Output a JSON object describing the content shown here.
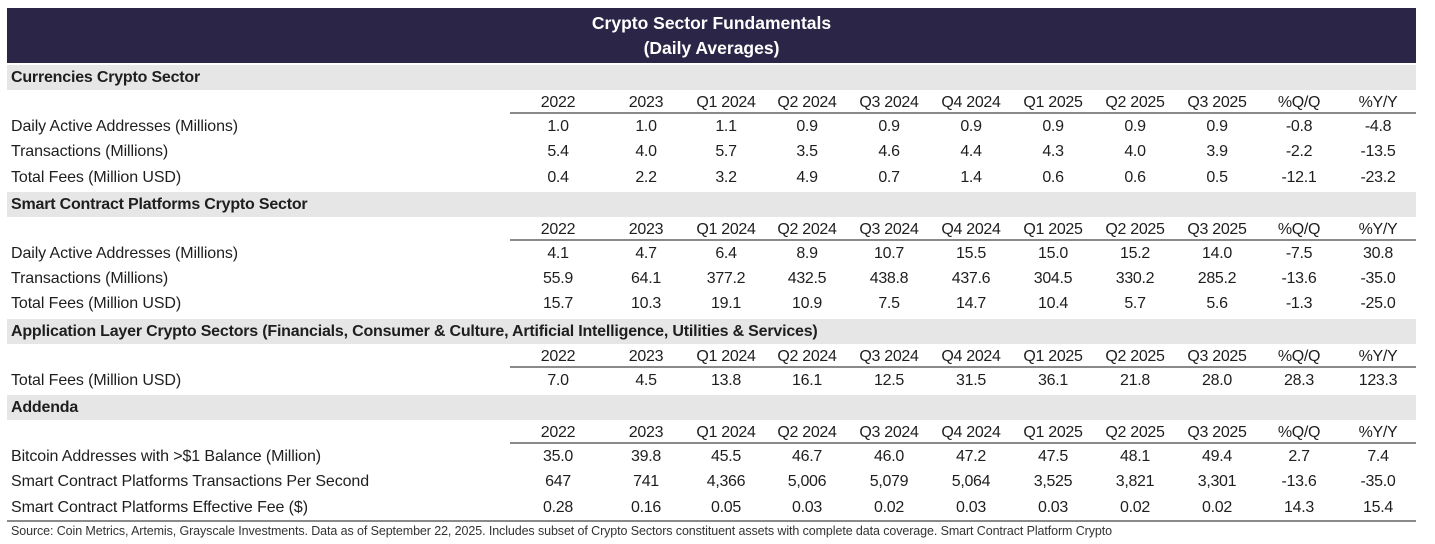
{
  "title_line1": "Crypto Sector Fundamentals",
  "title_line2": "(Daily Averages)",
  "columns": [
    "2022",
    "2023",
    "Q1 2024",
    "Q2 2024",
    "Q3 2024",
    "Q4 2024",
    "Q1 2025",
    "Q2 2025",
    "Q3 2025",
    "%Q/Q",
    "%Y/Y"
  ],
  "sections": [
    {
      "name": "Currencies Crypto Sector",
      "rows": [
        {
          "label": "Daily Active Addresses (Millions)",
          "values": [
            "1.0",
            "1.0",
            "1.1",
            "0.9",
            "0.9",
            "0.9",
            "0.9",
            "0.9",
            "0.9",
            "-0.8",
            "-4.8"
          ]
        },
        {
          "label": "Transactions (Millions)",
          "values": [
            "5.4",
            "4.0",
            "5.7",
            "3.5",
            "4.6",
            "4.4",
            "4.3",
            "4.0",
            "3.9",
            "-2.2",
            "-13.5"
          ]
        },
        {
          "label": "Total Fees (Million USD)",
          "values": [
            "0.4",
            "2.2",
            "3.2",
            "4.9",
            "0.7",
            "1.4",
            "0.6",
            "0.6",
            "0.5",
            "-12.1",
            "-23.2"
          ]
        }
      ]
    },
    {
      "name": "Smart Contract Platforms Crypto Sector",
      "rows": [
        {
          "label": "Daily Active Addresses (Millions)",
          "values": [
            "4.1",
            "4.7",
            "6.4",
            "8.9",
            "10.7",
            "15.5",
            "15.0",
            "15.2",
            "14.0",
            "-7.5",
            "30.8"
          ]
        },
        {
          "label": "Transactions (Millions)",
          "values": [
            "55.9",
            "64.1",
            "377.2",
            "432.5",
            "438.8",
            "437.6",
            "304.5",
            "330.2",
            "285.2",
            "-13.6",
            "-35.0"
          ]
        },
        {
          "label": "Total Fees (Million USD)",
          "values": [
            "15.7",
            "10.3",
            "19.1",
            "10.9",
            "7.5",
            "14.7",
            "10.4",
            "5.7",
            "5.6",
            "-1.3",
            "-25.0"
          ]
        }
      ]
    },
    {
      "name": "Application Layer Crypto Sectors (Financials, Consumer & Culture, Artificial Intelligence, Utilities & Services)",
      "rows": [
        {
          "label": "Total Fees (Million USD)",
          "values": [
            "7.0",
            "4.5",
            "13.8",
            "16.1",
            "12.5",
            "31.5",
            "36.1",
            "21.8",
            "28.0",
            "28.3",
            "123.3"
          ]
        }
      ]
    },
    {
      "name": "Addenda",
      "rows": [
        {
          "label": "Bitcoin Addresses with >$1 Balance (Million)",
          "values": [
            "35.0",
            "39.8",
            "45.5",
            "46.7",
            "46.0",
            "47.2",
            "47.5",
            "48.1",
            "49.4",
            "2.7",
            "7.4"
          ]
        },
        {
          "label": "Smart Contract Platforms Transactions Per Second",
          "values": [
            "647",
            "741",
            "4,366",
            "5,006",
            "5,079",
            "5,064",
            "3,525",
            "3,821",
            "3,301",
            "-13.6",
            "-35.0"
          ]
        },
        {
          "label": "Smart Contract Platforms Effective Fee ($)",
          "values": [
            "0.28",
            "0.16",
            "0.05",
            "0.03",
            "0.02",
            "0.03",
            "0.03",
            "0.02",
            "0.02",
            "14.3",
            "15.4"
          ]
        }
      ]
    }
  ],
  "source": "Source: Coin Metrics, Artemis, Grayscale Investments. Data as of September 22, 2025. Includes subset of Crypto Sectors constituent assets with complete data coverage. Smart Contract Platform Crypto",
  "colors": {
    "title_bg": "#2b2647",
    "section_bg": "#e6e6e6"
  }
}
